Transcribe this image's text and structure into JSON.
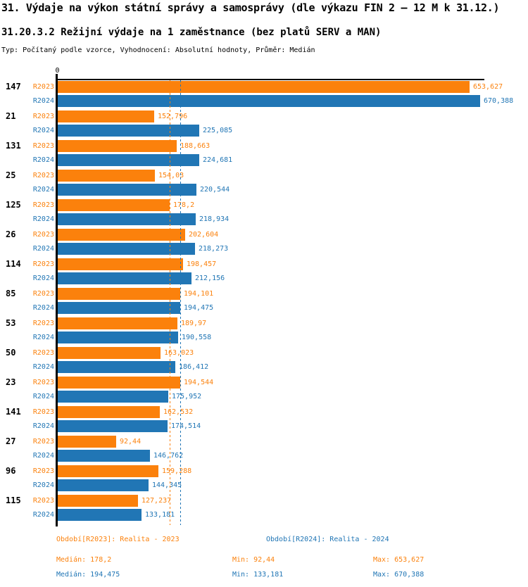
{
  "title": "31. Výdaje na výkon státní správy a samosprávy (dle výkazu FIN 2 – 12 M k 31.12.)",
  "subtitle": "31.20.3.2 Režijní výdaje na 1 zaměstnance (bez platů SERV a MAN)",
  "meta_line": "Typ: Počítaný podle vzorce, Vyhodnocení: Absolutní hodnoty, Průměr: Medián",
  "colors": {
    "r2023": "#fb810c",
    "r2024": "#2176b5",
    "axis": "#000000"
  },
  "axis": {
    "zero_label": "0"
  },
  "chart_data": {
    "type": "bar",
    "orientation": "horizontal",
    "title": "31.20.3.2 Režijní výdaje na 1 zaměstnance (bez platů SERV a MAN)",
    "xlim": [
      0,
      670.388
    ],
    "grid": false,
    "categories": [
      "147",
      "21",
      "131",
      "25",
      "125",
      "26",
      "114",
      "85",
      "53",
      "50",
      "23",
      "141",
      "27",
      "96",
      "115"
    ],
    "series": [
      {
        "name": "R2023",
        "color": "#fb810c",
        "median": 178.2,
        "values": [
          653.627,
          152.796,
          188.663,
          154.03,
          178.2,
          202.604,
          198.457,
          194.101,
          189.97,
          163.023,
          194.544,
          162.532,
          92.44,
          159.288,
          127.237
        ],
        "labels": [
          "653,627",
          "152,796",
          "188,663",
          "154,03",
          "178,2",
          "202,604",
          "198,457",
          "194,101",
          "189,97",
          "163,023",
          "194,544",
          "162,532",
          "92,44",
          "159,288",
          "127,237"
        ]
      },
      {
        "name": "R2024",
        "color": "#2176b5",
        "median": 194.475,
        "values": [
          670.388,
          225.085,
          224.681,
          220.544,
          218.934,
          218.273,
          212.156,
          194.475,
          190.558,
          186.412,
          175.952,
          174.514,
          146.762,
          144.345,
          133.181
        ],
        "labels": [
          "670,388",
          "225,085",
          "224,681",
          "220,544",
          "218,934",
          "218,273",
          "212,156",
          "194,475",
          "190,558",
          "186,412",
          "175,952",
          "174,514",
          "146,762",
          "144,345",
          "133,181"
        ]
      }
    ]
  },
  "footer": {
    "legend_r2023": "Období[R2023]: Realita - 2023",
    "legend_r2024": "Období[R2024]: Realita - 2024",
    "stats_r2023": {
      "median": "Medián: 178,2",
      "min": "Min: 92,44",
      "max": "Max: 653,627"
    },
    "stats_r2024": {
      "median": "Medián: 194,475",
      "min": "Min: 133,181",
      "max": "Max: 670,388"
    }
  }
}
